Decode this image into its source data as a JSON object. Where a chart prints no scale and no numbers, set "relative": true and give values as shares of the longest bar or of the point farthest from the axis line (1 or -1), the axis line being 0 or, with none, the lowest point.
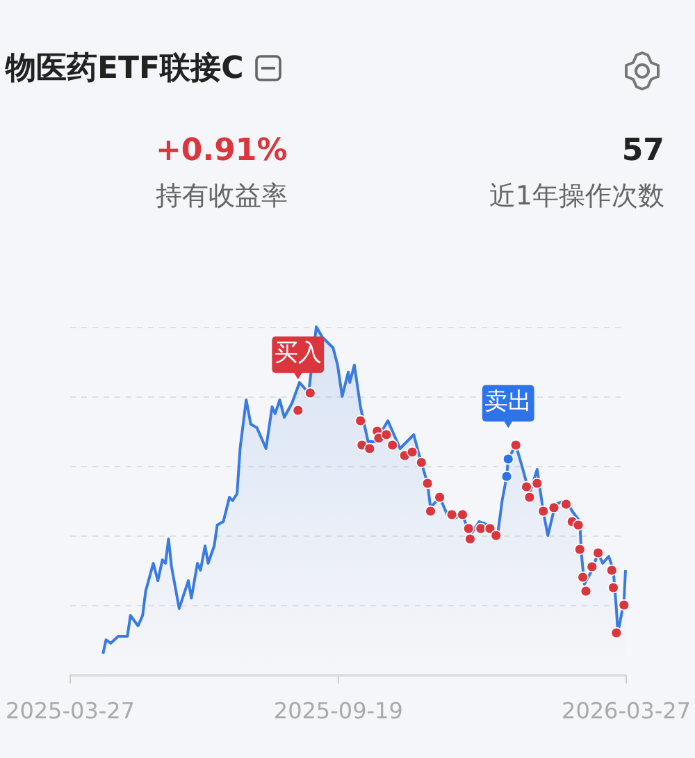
{
  "chart_data": {
    "type": "line",
    "title": "物医药ETF联接C",
    "relative": true,
    "grid": "y",
    "xlim": [
      "2025-03-27",
      "2026-03-27"
    ],
    "xticks": [
      {
        "value": "2025-03-27",
        "label": "2025-03-27"
      },
      {
        "value": "2025-09-19",
        "label": "2025-09-19"
      },
      {
        "value": "2026-03-27",
        "label": "2026-03-27"
      }
    ],
    "series": [
      {
        "type": "area",
        "color": "#3a7be0",
        "x": [
          "2025-04-18",
          "2025-04-20",
          "2025-04-23",
          "2025-04-28",
          "2025-05-04",
          "2025-05-06",
          "2025-05-11",
          "2025-05-14",
          "2025-05-16",
          "2025-05-21",
          "2025-05-24",
          "2025-05-27",
          "2025-05-29",
          "2025-05-31",
          "2025-06-02",
          "2025-06-07",
          "2025-06-13",
          "2025-06-15",
          "2025-06-19",
          "2025-06-21",
          "2025-06-24",
          "2025-06-26",
          "2025-06-30",
          "2025-07-02",
          "2025-07-06",
          "2025-07-10",
          "2025-07-12",
          "2025-07-15",
          "2025-07-17",
          "2025-07-21",
          "2025-07-24",
          "2025-07-28",
          "2025-08-03",
          "2025-08-07",
          "2025-08-09",
          "2025-08-12",
          "2025-08-15",
          "2025-08-20",
          "2025-08-25",
          "2025-08-31",
          "2025-09-05",
          "2025-09-09",
          "2025-09-16",
          "2025-09-19",
          "2025-09-22",
          "2025-09-26",
          "2025-09-27",
          "2025-09-30",
          "2025-10-04",
          "2025-10-07",
          "2025-10-09",
          "2025-10-14",
          "2025-10-22",
          "2025-10-26",
          "2025-10-30",
          "2025-11-08",
          "2025-11-11",
          "2025-11-17",
          "2025-11-19",
          "2025-11-25",
          "2025-11-30",
          "2025-12-05",
          "2025-12-10",
          "2025-12-15",
          "2025-12-21",
          "2025-12-27",
          "2026-01-02",
          "2026-01-05",
          "2026-01-08",
          "2026-01-09",
          "2026-01-14",
          "2026-01-18",
          "2026-01-23",
          "2026-01-28",
          "2026-02-01",
          "2026-02-04",
          "2026-02-09",
          "2026-02-16",
          "2026-02-20",
          "2026-02-25",
          "2026-02-26",
          "2026-02-28",
          "2026-03-05",
          "2026-03-09",
          "2026-03-12",
          "2026-03-16",
          "2026-03-19",
          "2026-03-21",
          "2026-03-22",
          "2026-03-26",
          "2026-03-27"
        ],
        "values": [
          0.06,
          0.1,
          0.09,
          0.11,
          0.11,
          0.17,
          0.14,
          0.17,
          0.24,
          0.32,
          0.27,
          0.33,
          0.32,
          0.39,
          0.31,
          0.19,
          0.27,
          0.22,
          0.32,
          0.3,
          0.37,
          0.32,
          0.37,
          0.43,
          0.44,
          0.51,
          0.5,
          0.52,
          0.65,
          0.79,
          0.72,
          0.71,
          0.65,
          0.77,
          0.75,
          0.79,
          0.74,
          0.78,
          0.84,
          0.81,
          1.0,
          0.97,
          0.94,
          0.89,
          0.8,
          0.87,
          0.84,
          0.89,
          0.77,
          0.71,
          0.67,
          0.67,
          0.73,
          0.69,
          0.65,
          0.69,
          0.64,
          0.55,
          0.48,
          0.51,
          0.46,
          0.45,
          0.46,
          0.4,
          0.44,
          0.43,
          0.4,
          0.5,
          0.57,
          0.62,
          0.66,
          0.6,
          0.52,
          0.59,
          0.47,
          0.4,
          0.49,
          0.5,
          0.47,
          0.44,
          0.35,
          0.26,
          0.3,
          0.35,
          0.32,
          0.34,
          0.3,
          0.19,
          0.12,
          0.21,
          0.3
        ]
      },
      {
        "type": "scatter",
        "color": "#d9363e",
        "marker": "circle",
        "x": [
          "2025-08-24",
          "2025-09-01",
          "2025-10-04",
          "2025-10-05",
          "2025-10-10",
          "2025-10-15",
          "2025-10-16",
          "2025-10-21",
          "2025-10-25",
          "2025-11-02",
          "2025-11-07",
          "2025-11-13",
          "2025-11-17",
          "2025-11-19",
          "2025-11-25",
          "2025-12-03",
          "2025-12-10",
          "2025-12-14",
          "2025-12-15",
          "2025-12-22",
          "2025-12-28",
          "2026-01-01",
          "2026-01-14",
          "2026-01-21",
          "2026-01-23",
          "2026-01-28",
          "2026-02-01",
          "2026-02-08",
          "2026-02-16",
          "2026-02-20",
          "2026-02-24",
          "2026-02-25",
          "2026-02-27",
          "2026-03-01",
          "2026-03-05",
          "2026-03-09",
          "2026-03-18",
          "2026-03-19",
          "2026-03-21",
          "2026-03-26"
        ],
        "values": [
          0.76,
          0.81,
          0.73,
          0.66,
          0.65,
          0.7,
          0.68,
          0.69,
          0.66,
          0.63,
          0.64,
          0.61,
          0.55,
          0.47,
          0.51,
          0.46,
          0.46,
          0.42,
          0.39,
          0.42,
          0.42,
          0.4,
          0.66,
          0.54,
          0.51,
          0.55,
          0.47,
          0.48,
          0.49,
          0.44,
          0.43,
          0.36,
          0.28,
          0.24,
          0.31,
          0.35,
          0.3,
          0.25,
          0.12,
          0.2
        ]
      },
      {
        "type": "scatter",
        "color": "#2f73e8",
        "marker": "circle",
        "x": [
          "2026-01-08",
          "2026-01-09"
        ],
        "values": [
          0.57,
          0.62
        ]
      }
    ],
    "annotations": [
      "+0.91%",
      "持有收益率",
      "57",
      "近1年操作次数",
      {
        "text": "买入",
        "x": "2025-08-24",
        "y": 0.76
      },
      {
        "text": "卖出",
        "x": "2026-01-09",
        "y": 0.62
      }
    ]
  }
}
